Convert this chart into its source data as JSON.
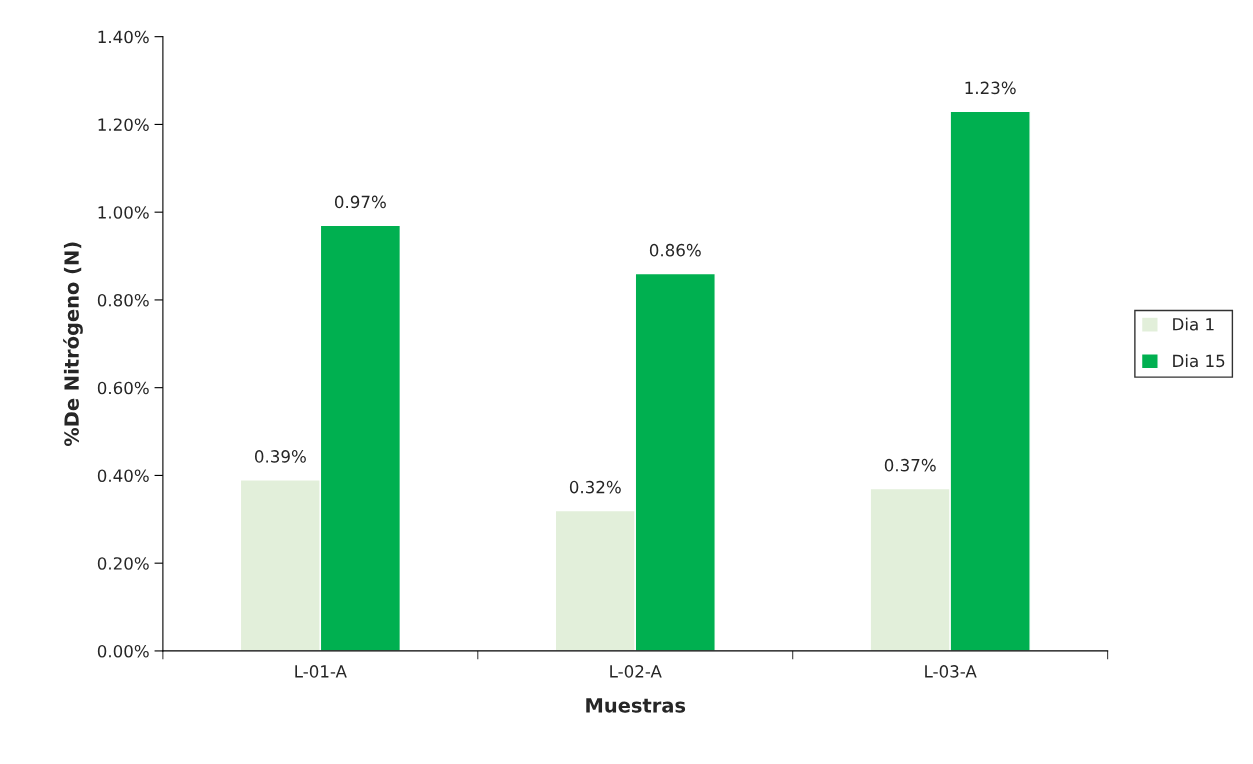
{
  "chart_data": {
    "type": "bar",
    "xlabel": "Muestras",
    "ylabel": "%De Nitrógeno (N)",
    "categories": [
      "L-01-A",
      "L-02-A",
      "L-03-A"
    ],
    "series": [
      {
        "name": "Dia 1",
        "color": "#e2efda",
        "values": [
          0.39,
          0.32,
          0.37
        ],
        "value_labels": [
          "0.39%",
          "0.32%",
          "0.37%"
        ]
      },
      {
        "name": "Dia 15",
        "color": "#00b050",
        "values": [
          0.97,
          0.86,
          1.23
        ],
        "value_labels": [
          "0.97%",
          "0.86%",
          "1.23%"
        ]
      }
    ],
    "ylim": [
      0,
      1.4
    ],
    "yticks": [
      {
        "value": 0,
        "label": "0.00%"
      },
      {
        "value": 0.2,
        "label": "0.20%"
      },
      {
        "value": 0.4,
        "label": "0.40%"
      },
      {
        "value": 0.6,
        "label": "0.60%"
      },
      {
        "value": 0.8,
        "label": "0.80%"
      },
      {
        "value": 1.0,
        "label": "1.00%"
      },
      {
        "value": 1.2,
        "label": "1.20%"
      },
      {
        "value": 1.4,
        "label": "1.40%"
      }
    ],
    "grid": false,
    "legend": "right"
  }
}
